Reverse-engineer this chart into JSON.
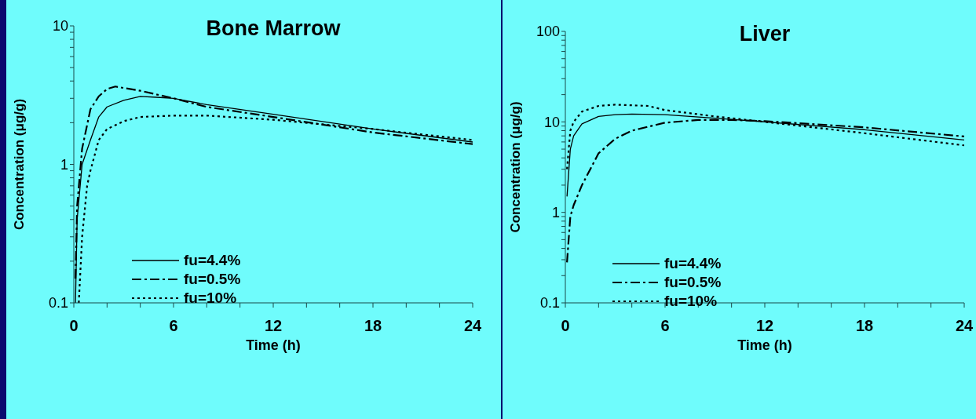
{
  "chart_data": [
    {
      "type": "line",
      "title": "Bone Marrow",
      "xlabel": "Time (h)",
      "ylabel": "Concentration (μg/g)",
      "log": "y",
      "xlim": [
        0,
        24
      ],
      "ylim": [
        0.1,
        10
      ],
      "xticks": [
        0,
        {
          "value": 2,
          "label": null
        },
        {
          "value": 4,
          "label": null
        },
        6,
        {
          "value": 8,
          "label": null
        },
        {
          "value": 10,
          "label": null
        },
        12,
        {
          "value": 14,
          "label": null
        },
        {
          "value": 16,
          "label": null
        },
        18,
        {
          "value": 20,
          "label": null
        },
        {
          "value": 22,
          "label": null
        },
        24
      ],
      "yticks": [
        0.1,
        {
          "value": 0.2,
          "label": null
        },
        {
          "value": 0.3,
          "label": null
        },
        {
          "value": 0.4,
          "label": null
        },
        {
          "value": 0.5,
          "label": null
        },
        {
          "value": 0.6,
          "label": null
        },
        {
          "value": 0.7,
          "label": null
        },
        {
          "value": 0.8,
          "label": null
        },
        {
          "value": 0.9,
          "label": null
        },
        1,
        {
          "value": 2,
          "label": null
        },
        {
          "value": 3,
          "label": null
        },
        {
          "value": 4,
          "label": null
        },
        {
          "value": 5,
          "label": null
        },
        {
          "value": 6,
          "label": null
        },
        {
          "value": 7,
          "label": null
        },
        {
          "value": 8,
          "label": null
        },
        {
          "value": 9,
          "label": null
        },
        10
      ],
      "legend": "bottom left",
      "grid": false,
      "marker": "none",
      "series": [
        {
          "name": "fu=4.4%",
          "color": "#000000",
          "line_style": "solid",
          "x": [
            0.1,
            0.2,
            0.5,
            1,
            1.5,
            2,
            3,
            4,
            5,
            6,
            8,
            12,
            18,
            24
          ],
          "values": [
            0.1,
            0.4,
            1.0,
            1.5,
            2.2,
            2.6,
            2.9,
            3.1,
            3.05,
            3.0,
            2.7,
            2.3,
            1.8,
            1.45
          ]
        },
        {
          "name": "fu=0.5%",
          "color": "#000000",
          "line_style": "dashed",
          "x": [
            0.1,
            0.2,
            0.5,
            1,
            1.5,
            2,
            2.5,
            4,
            6,
            8,
            12,
            18,
            24
          ],
          "values": [
            0.15,
            0.5,
            1.3,
            2.5,
            3.1,
            3.5,
            3.65,
            3.4,
            3.0,
            2.6,
            2.2,
            1.7,
            1.4
          ]
        },
        {
          "name": "fu=10%",
          "color": "#000000",
          "line_style": "dotted",
          "x": [
            0.3,
            0.5,
            0.8,
            1,
            1.5,
            2,
            3,
            4,
            6,
            8,
            12,
            18,
            24
          ],
          "values": [
            0.1,
            0.3,
            0.7,
            0.9,
            1.5,
            1.8,
            2.05,
            2.2,
            2.25,
            2.25,
            2.1,
            1.8,
            1.5
          ]
        }
      ]
    },
    {
      "type": "line",
      "title": "Liver",
      "xlabel": "Time (h)",
      "ylabel": "Concentration (μg/g)",
      "log": "y",
      "xlim": [
        0,
        24
      ],
      "ylim": [
        0.1,
        100
      ],
      "xticks": [
        0,
        {
          "value": 2,
          "label": null
        },
        {
          "value": 4,
          "label": null
        },
        6,
        {
          "value": 8,
          "label": null
        },
        {
          "value": 10,
          "label": null
        },
        12,
        {
          "value": 14,
          "label": null
        },
        {
          "value": 16,
          "label": null
        },
        18,
        {
          "value": 20,
          "label": null
        },
        {
          "value": 22,
          "label": null
        },
        24
      ],
      "yticks": [
        0.1,
        {
          "value": 0.2,
          "label": null
        },
        {
          "value": 0.3,
          "label": null
        },
        {
          "value": 0.4,
          "label": null
        },
        {
          "value": 0.5,
          "label": null
        },
        {
          "value": 0.6,
          "label": null
        },
        {
          "value": 0.7,
          "label": null
        },
        {
          "value": 0.8,
          "label": null
        },
        {
          "value": 0.9,
          "label": null
        },
        1,
        {
          "value": 2,
          "label": null
        },
        {
          "value": 3,
          "label": null
        },
        {
          "value": 4,
          "label": null
        },
        {
          "value": 5,
          "label": null
        },
        {
          "value": 6,
          "label": null
        },
        {
          "value": 7,
          "label": null
        },
        {
          "value": 8,
          "label": null
        },
        {
          "value": 9,
          "label": null
        },
        10,
        {
          "value": 20,
          "label": null
        },
        {
          "value": 30,
          "label": null
        },
        {
          "value": 40,
          "label": null
        },
        {
          "value": 50,
          "label": null
        },
        {
          "value": 60,
          "label": null
        },
        {
          "value": 70,
          "label": null
        },
        {
          "value": 80,
          "label": null
        },
        {
          "value": 90,
          "label": null
        },
        100
      ],
      "legend": "bottom left",
      "grid": false,
      "marker": "none",
      "series": [
        {
          "name": "fu=4.4%",
          "color": "#000000",
          "line_style": "solid",
          "x": [
            0.1,
            0.3,
            0.5,
            1,
            2,
            3,
            4,
            6,
            9,
            12,
            18,
            24
          ],
          "values": [
            1.5,
            5,
            7,
            9.5,
            11.5,
            12,
            12.2,
            12,
            11,
            10,
            8.2,
            6.3
          ]
        },
        {
          "name": "fu=0.5%",
          "color": "#000000",
          "line_style": "dashed",
          "x": [
            0.1,
            0.3,
            0.5,
            1,
            1.5,
            2,
            3,
            4,
            6,
            8,
            10,
            12,
            18,
            24
          ],
          "values": [
            0.28,
            0.9,
            1.2,
            2,
            3,
            4.5,
            6.5,
            8,
            9.8,
            10.5,
            10.5,
            10.2,
            8.7,
            6.9
          ]
        },
        {
          "name": "fu=10%",
          "color": "#000000",
          "line_style": "dotted",
          "x": [
            0.1,
            0.3,
            0.5,
            1,
            2,
            3,
            5,
            6,
            9,
            12,
            18,
            24
          ],
          "values": [
            3,
            8,
            10,
            13,
            15,
            15.5,
            15,
            13.5,
            11.5,
            10,
            7.5,
            5.5
          ]
        }
      ]
    }
  ]
}
